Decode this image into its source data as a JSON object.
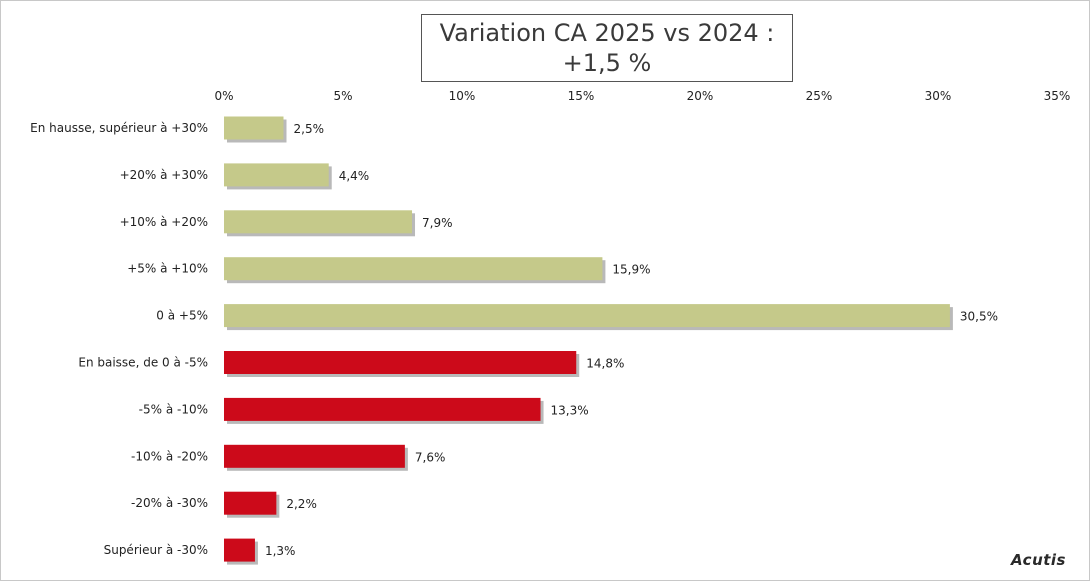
{
  "chart_data": {
    "type": "bar",
    "orientation": "horizontal",
    "title": "Variation CA 2025 vs 2024 :\n+1,5 %",
    "categories": [
      "En hausse, supérieur à +30%",
      "+20% à +30%",
      "+10% à +20%",
      "+5% à +10%",
      "0 à +5%",
      "En baisse, de 0 à -5%",
      "-5% à -10%",
      "-10% à -20%",
      "-20% à -30%",
      "Supérieur à -30%"
    ],
    "values": [
      2.5,
      4.4,
      7.9,
      15.9,
      30.5,
      14.8,
      13.3,
      7.6,
      2.2,
      1.3
    ],
    "value_labels": [
      "2,5%",
      "4,4%",
      "7,9%",
      "15,9%",
      "30,5%",
      "14,8%",
      "13,3%",
      "7,6%",
      "2,2%",
      "1,3%"
    ],
    "bar_colors": [
      "#c5c98a",
      "#c5c98a",
      "#c5c98a",
      "#c5c98a",
      "#c5c98a",
      "#cc0a1a",
      "#cc0a1a",
      "#cc0a1a",
      "#cc0a1a",
      "#cc0a1a"
    ],
    "xlim": [
      0,
      35
    ],
    "xticks": [
      0,
      5,
      10,
      15,
      20,
      25,
      30,
      35
    ],
    "xtick_labels": [
      "0%",
      "5%",
      "10%",
      "15%",
      "20%",
      "25%",
      "30%",
      "35%"
    ],
    "xaxis_position": "top",
    "grid": false,
    "legend": "none"
  },
  "logo_text": "Acutis"
}
